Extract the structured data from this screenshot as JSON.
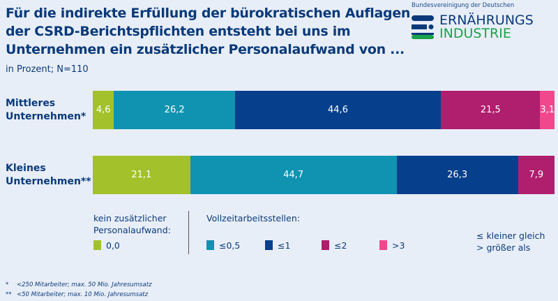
{
  "header": {
    "title": "Für die indirekte Erfüllung der bürokratischen Auflagen der CSRD-Berichtspflichten entsteht bei uns im Unternehmen ein zusätzlicher Personalaufwand von ...",
    "subtitle": "in Prozent; N=110"
  },
  "logo": {
    "top": "Bundesvereinigung der Deutschen",
    "line1": "ERNÄHRUNGS",
    "line2": "INDUSTRIE"
  },
  "chart_data": {
    "type": "bar",
    "orientation": "horizontal-stacked-100",
    "categories": [
      "Mittleres Unternehmen*",
      "Kleines Unternehmen**"
    ],
    "series": [
      {
        "name": "0,0",
        "color": "#a2c12b",
        "values": [
          4.6,
          21.1
        ]
      },
      {
        "name": "≤0,5",
        "color": "#0f93b1",
        "values": [
          26.2,
          44.7
        ]
      },
      {
        "name": "≤1",
        "color": "#063f8c",
        "values": [
          44.6,
          26.3
        ]
      },
      {
        "name": "≤2",
        "color": "#b01e6e",
        "values": [
          21.5,
          7.9
        ]
      },
      {
        "name": ">3",
        "color": "#f0478d",
        "values": [
          3.1,
          0
        ]
      }
    ],
    "labels": [
      [
        "4,6",
        "26,2",
        "44,6",
        "21,5",
        "3,1"
      ],
      [
        "21,1",
        "44,7",
        "26,3",
        "7,9",
        ""
      ]
    ],
    "row_labels": [
      [
        "Mittleres",
        "Unternehmen*"
      ],
      [
        "Kleines",
        "Unternehmen**"
      ]
    ]
  },
  "legend": {
    "group1_title": [
      "kein zusätzlicher",
      "Personalaufwand:"
    ],
    "group2_title": "Vollzeitarbeitsstellen:",
    "key": [
      "≤ kleiner gleich",
      "> größer als"
    ]
  },
  "footnotes": [
    [
      "*",
      "<250 Mitarbeiter; max. 50 Mio. Jahresumsatz"
    ],
    [
      "**",
      "<50 Mitarbeiter; max. 10 Mio. Jahresumsatz"
    ]
  ]
}
